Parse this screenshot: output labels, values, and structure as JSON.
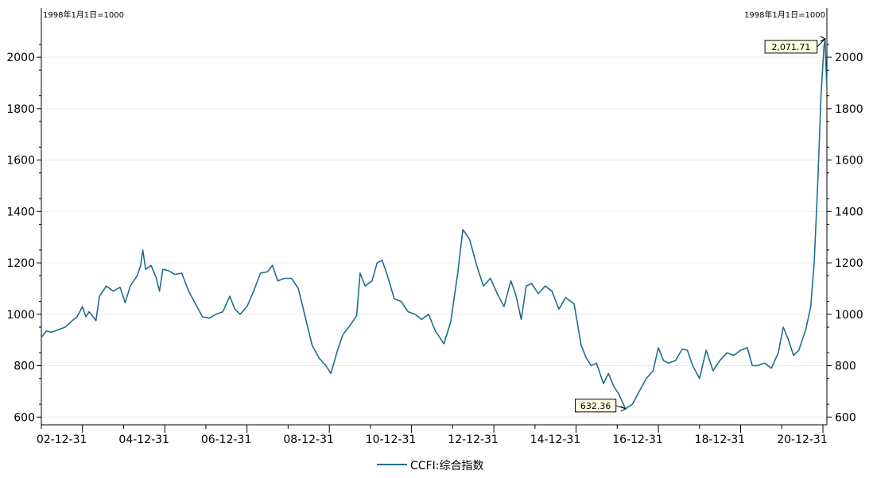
{
  "chart_data": {
    "type": "line",
    "base_note_left": "1998年1月1日=1000",
    "base_note_right": "1998年1月1日=1000",
    "x_tick_labels": [
      "02-12-31",
      "04-12-31",
      "06-12-31",
      "08-12-31",
      "10-12-31",
      "12-12-31",
      "14-12-31",
      "16-12-31",
      "18-12-31",
      "20-12-31"
    ],
    "y_ticks": [
      600,
      800,
      1000,
      1200,
      1400,
      1600,
      1800,
      2000
    ],
    "ylim": [
      570,
      2130
    ],
    "xlim": [
      "2002-01-01",
      "2021-02-05"
    ],
    "grid": true,
    "legend_position": "bottom-center",
    "series": [
      {
        "name": "CCFI:综合指数",
        "color": "#1f6f8b",
        "points": [
          [
            "2002-01-01",
            910
          ],
          [
            "2002-02-15",
            935
          ],
          [
            "2002-04-01",
            930
          ],
          [
            "2002-06-01",
            940
          ],
          [
            "2002-08-01",
            950
          ],
          [
            "2002-10-01",
            975
          ],
          [
            "2002-11-15",
            990
          ],
          [
            "2002-12-31",
            1030
          ],
          [
            "2003-02-01",
            990
          ],
          [
            "2003-03-01",
            1010
          ],
          [
            "2003-05-01",
            975
          ],
          [
            "2003-06-01",
            1070
          ],
          [
            "2003-08-01",
            1110
          ],
          [
            "2003-10-01",
            1090
          ],
          [
            "2003-12-01",
            1105
          ],
          [
            "2004-01-15",
            1045
          ],
          [
            "2004-03-01",
            1110
          ],
          [
            "2004-05-01",
            1150
          ],
          [
            "2004-06-01",
            1190
          ],
          [
            "2004-06-20",
            1250
          ],
          [
            "2004-07-15",
            1175
          ],
          [
            "2004-09-01",
            1190
          ],
          [
            "2004-10-15",
            1145
          ],
          [
            "2004-11-15",
            1090
          ],
          [
            "2004-12-15",
            1175
          ],
          [
            "2005-02-01",
            1170
          ],
          [
            "2005-04-01",
            1155
          ],
          [
            "2005-06-01",
            1160
          ],
          [
            "2005-08-01",
            1090
          ],
          [
            "2005-10-01",
            1040
          ],
          [
            "2005-12-01",
            990
          ],
          [
            "2006-02-01",
            985
          ],
          [
            "2006-04-01",
            1000
          ],
          [
            "2006-06-01",
            1010
          ],
          [
            "2006-08-01",
            1070
          ],
          [
            "2006-09-15",
            1020
          ],
          [
            "2006-11-01",
            1000
          ],
          [
            "2007-01-01",
            1030
          ],
          [
            "2007-03-01",
            1090
          ],
          [
            "2007-05-01",
            1160
          ],
          [
            "2007-07-01",
            1165
          ],
          [
            "2007-08-15",
            1190
          ],
          [
            "2007-10-01",
            1130
          ],
          [
            "2007-12-01",
            1140
          ],
          [
            "2008-02-01",
            1140
          ],
          [
            "2008-04-01",
            1100
          ],
          [
            "2008-06-01",
            990
          ],
          [
            "2008-08-01",
            880
          ],
          [
            "2008-10-01",
            830
          ],
          [
            "2008-12-01",
            800
          ],
          [
            "2009-01-15",
            770
          ],
          [
            "2009-03-15",
            860
          ],
          [
            "2009-05-01",
            920
          ],
          [
            "2009-07-01",
            955
          ],
          [
            "2009-09-01",
            995
          ],
          [
            "2009-10-01",
            1160
          ],
          [
            "2009-11-15",
            1110
          ],
          [
            "2010-01-15",
            1130
          ],
          [
            "2010-03-01",
            1200
          ],
          [
            "2010-04-15",
            1210
          ],
          [
            "2010-06-01",
            1150
          ],
          [
            "2010-08-01",
            1060
          ],
          [
            "2010-10-01",
            1050
          ],
          [
            "2010-12-01",
            1010
          ],
          [
            "2011-02-01",
            1000
          ],
          [
            "2011-04-01",
            980
          ],
          [
            "2011-06-01",
            1000
          ],
          [
            "2011-08-01",
            935
          ],
          [
            "2011-10-15",
            885
          ],
          [
            "2011-12-15",
            970
          ],
          [
            "2012-02-15",
            1160
          ],
          [
            "2012-04-01",
            1330
          ],
          [
            "2012-06-01",
            1290
          ],
          [
            "2012-08-01",
            1190
          ],
          [
            "2012-10-01",
            1110
          ],
          [
            "2012-12-01",
            1140
          ],
          [
            "2013-02-01",
            1080
          ],
          [
            "2013-04-01",
            1030
          ],
          [
            "2013-06-01",
            1130
          ],
          [
            "2013-07-15",
            1075
          ],
          [
            "2013-09-01",
            980
          ],
          [
            "2013-10-15",
            1110
          ],
          [
            "2013-12-01",
            1120
          ],
          [
            "2014-02-01",
            1080
          ],
          [
            "2014-04-01",
            1110
          ],
          [
            "2014-06-01",
            1090
          ],
          [
            "2014-08-01",
            1020
          ],
          [
            "2014-10-01",
            1065
          ],
          [
            "2014-12-15",
            1040
          ],
          [
            "2015-02-15",
            880
          ],
          [
            "2015-04-01",
            830
          ],
          [
            "2015-05-15",
            800
          ],
          [
            "2015-07-01",
            810
          ],
          [
            "2015-09-01",
            730
          ],
          [
            "2015-10-15",
            770
          ],
          [
            "2015-12-01",
            720
          ],
          [
            "2016-01-15",
            690
          ],
          [
            "2016-03-15",
            632.36
          ],
          [
            "2016-05-15",
            650
          ],
          [
            "2016-07-15",
            700
          ],
          [
            "2016-09-15",
            750
          ],
          [
            "2016-11-15",
            780
          ],
          [
            "2017-01-01",
            870
          ],
          [
            "2017-02-15",
            820
          ],
          [
            "2017-04-01",
            810
          ],
          [
            "2017-06-01",
            820
          ],
          [
            "2017-08-01",
            865
          ],
          [
            "2017-09-15",
            860
          ],
          [
            "2017-11-01",
            800
          ],
          [
            "2018-01-01",
            750
          ],
          [
            "2018-03-01",
            860
          ],
          [
            "2018-05-01",
            780
          ],
          [
            "2018-07-01",
            820
          ],
          [
            "2018-09-01",
            850
          ],
          [
            "2018-11-01",
            840
          ],
          [
            "2019-01-01",
            860
          ],
          [
            "2019-03-01",
            870
          ],
          [
            "2019-04-15",
            800
          ],
          [
            "2019-06-01",
            800
          ],
          [
            "2019-08-01",
            810
          ],
          [
            "2019-10-01",
            790
          ],
          [
            "2019-12-01",
            850
          ],
          [
            "2020-01-15",
            950
          ],
          [
            "2020-03-01",
            900
          ],
          [
            "2020-04-15",
            840
          ],
          [
            "2020-06-01",
            860
          ],
          [
            "2020-08-01",
            940
          ],
          [
            "2020-09-15",
            1030
          ],
          [
            "2020-10-15",
            1200
          ],
          [
            "2020-11-15",
            1500
          ],
          [
            "2020-12-15",
            1850
          ],
          [
            "2021-01-10",
            2040
          ],
          [
            "2021-01-20",
            2071.71
          ],
          [
            "2021-01-29",
            1950
          ],
          [
            "2021-02-05",
            1880
          ]
        ]
      }
    ],
    "annotations": [
      {
        "label": "2,071.71",
        "x": "2021-01-20",
        "y": 2071.71
      },
      {
        "label": "632.36",
        "x": "2016-03-15",
        "y": 632.36
      }
    ]
  }
}
